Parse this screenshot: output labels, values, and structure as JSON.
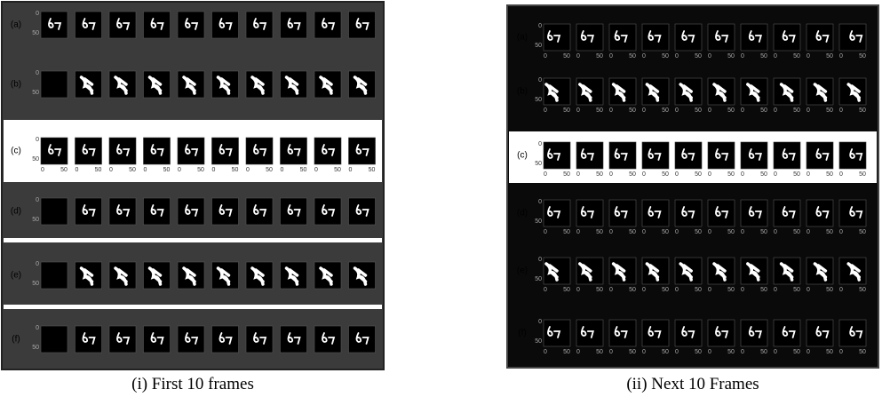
{
  "panels": [
    {
      "caption": "(i) First 10 frames",
      "rows": [
        "(a)",
        "(b)",
        "(c)",
        "(d)",
        "(e)",
        "(f)"
      ]
    },
    {
      "caption": "(ii) Next 10 Frames",
      "rows": [
        "(a)",
        "(b)",
        "(c)",
        "(d)",
        "(e)",
        "(f)"
      ]
    }
  ],
  "axis_ticks": [
    "0",
    "50"
  ]
}
